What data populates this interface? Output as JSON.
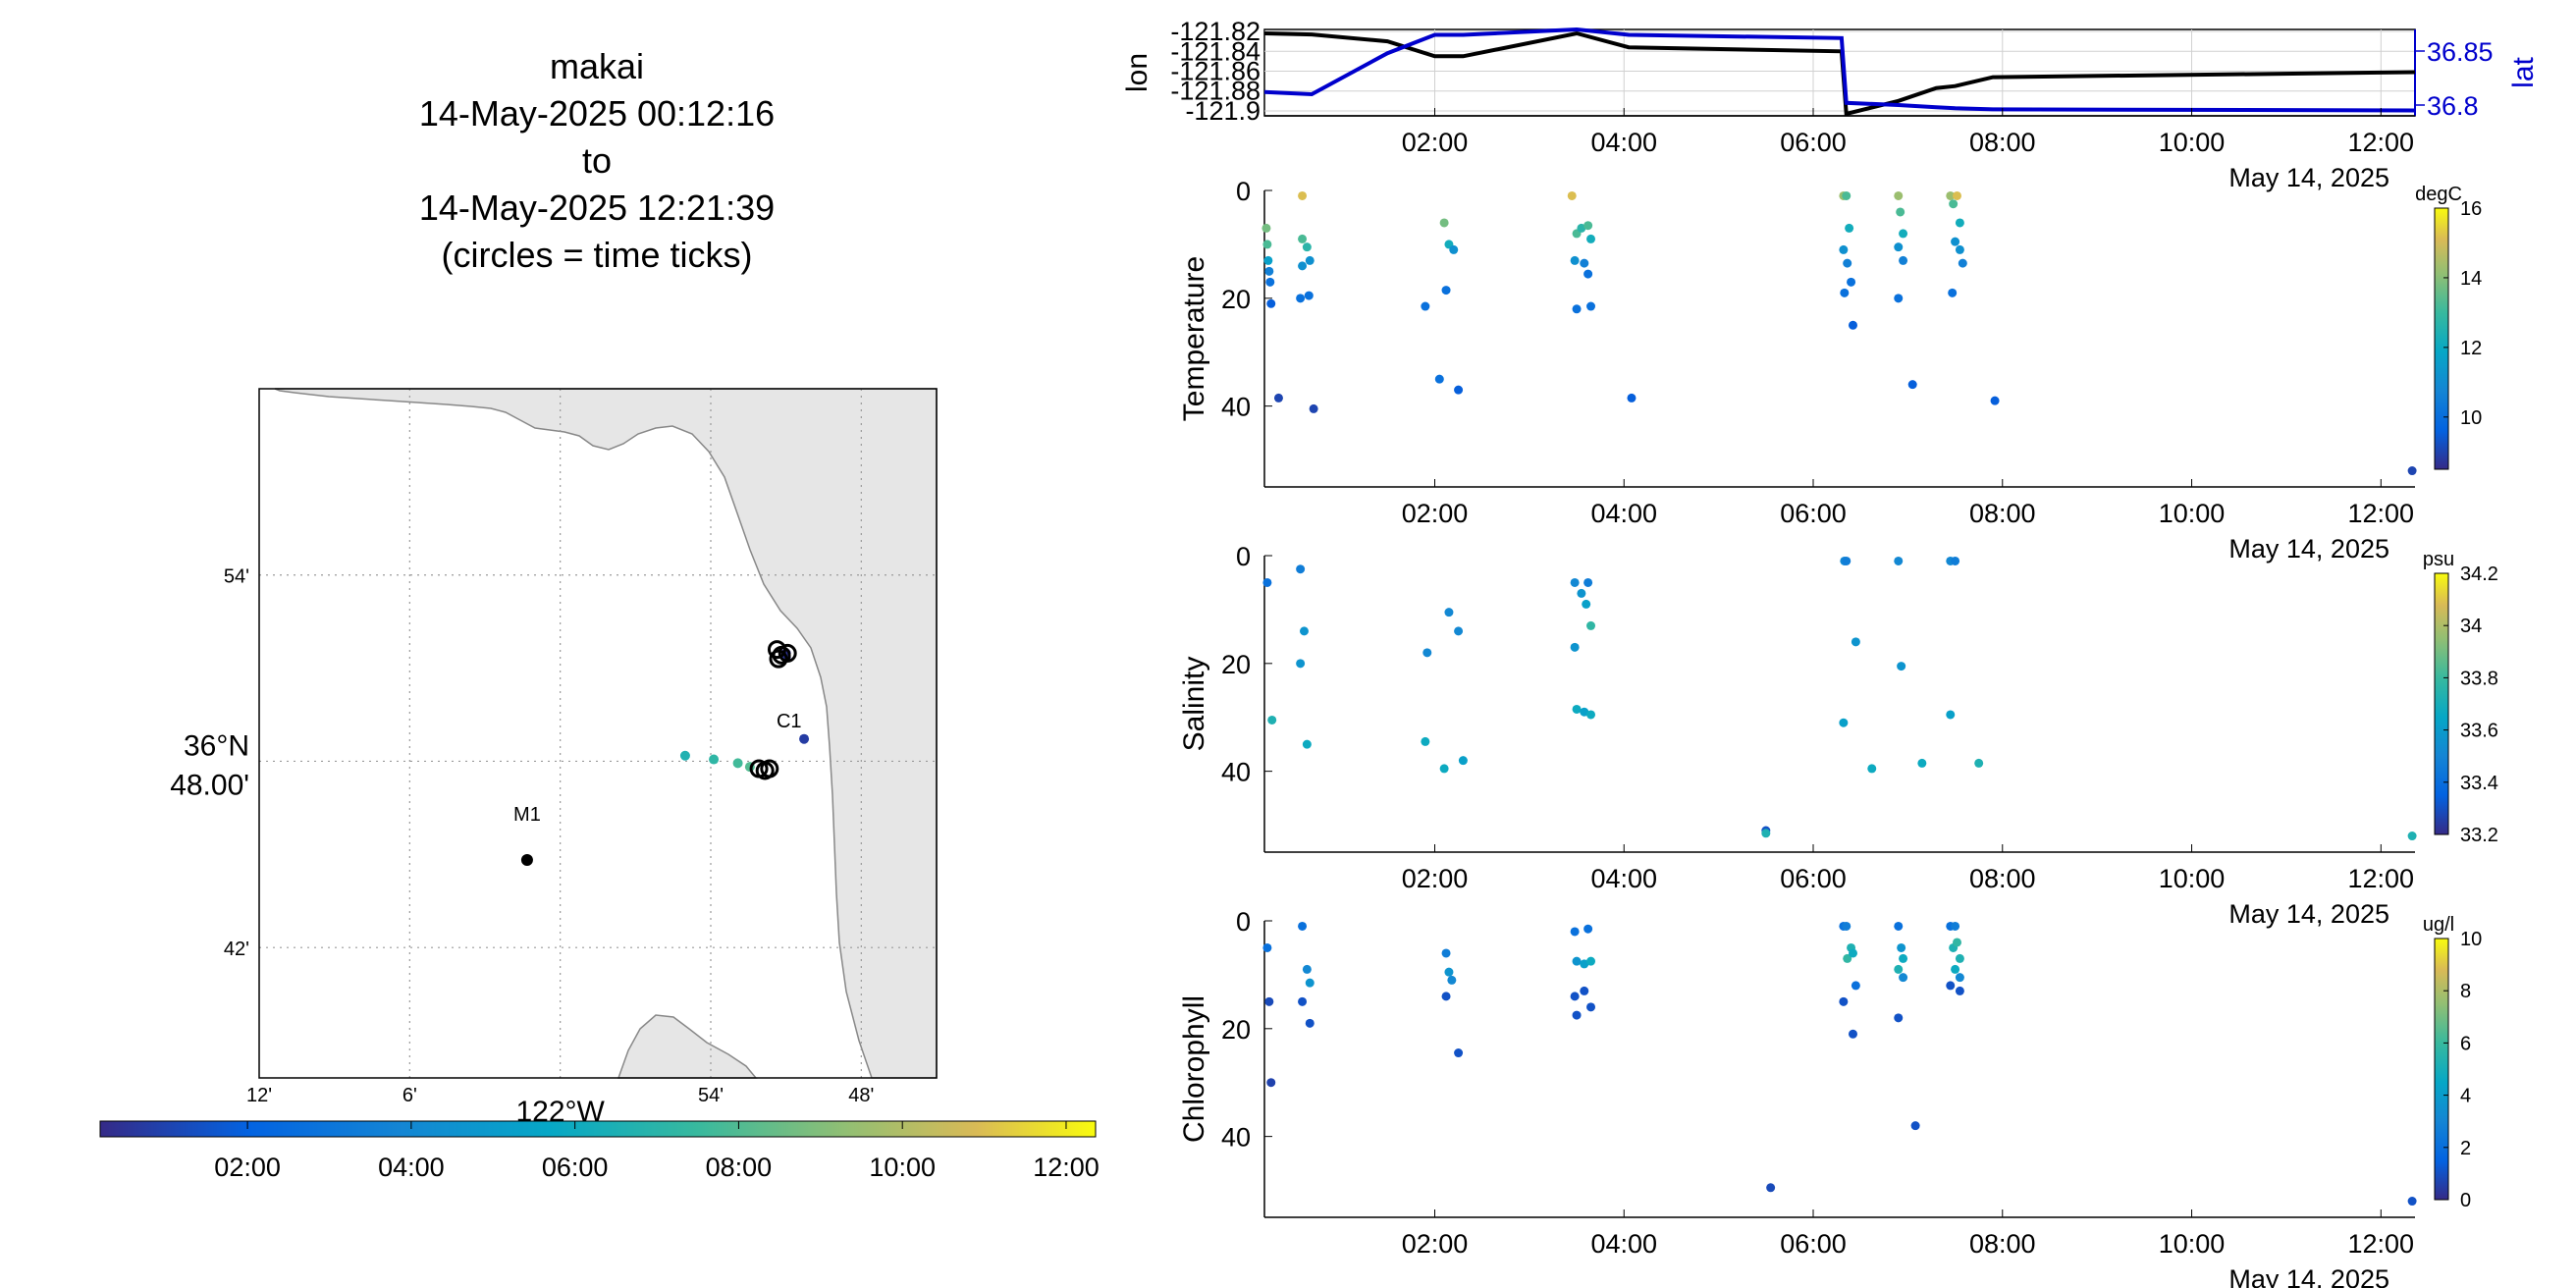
{
  "header": {
    "title_lines": [
      "makai",
      "14-May-2025 00:12:16",
      "to",
      "14-May-2025 12:21:39",
      "(circles = time ticks)"
    ]
  },
  "map": {
    "lat_labels": [
      "54'",
      "36°N 48.00'",
      "42'"
    ],
    "lat_values": [
      36.9,
      36.8,
      36.7
    ],
    "lon_labels": [
      "12'",
      "6'",
      "122°W",
      "54'",
      "48'"
    ],
    "lon_values": [
      -122.2,
      -122.1,
      -122.0,
      -121.9,
      -121.8
    ],
    "lon_axis_label": "122°W",
    "stations": [
      {
        "name": "M1",
        "lat": 36.747,
        "lon": -122.022
      },
      {
        "name": "C1",
        "lat": 36.797,
        "lon": -121.848
      }
    ],
    "track_points": [
      {
        "lat": 36.858,
        "lon": -121.85,
        "time": "00:15"
      },
      {
        "lat": 36.856,
        "lon": -121.85,
        "time": "00:30"
      },
      {
        "lat": 36.812,
        "lon": -121.838,
        "time": "00:45"
      },
      {
        "lat": 36.803,
        "lon": -121.917,
        "time": "06:20"
      },
      {
        "lat": 36.801,
        "lon": -121.898,
        "time": "06:50"
      },
      {
        "lat": 36.799,
        "lon": -121.882,
        "time": "07:20"
      },
      {
        "lat": 36.797,
        "lon": -121.874,
        "time": "07:40"
      }
    ],
    "time_circles": [
      {
        "lat": 36.86,
        "lon": -121.856
      },
      {
        "lat": 36.857,
        "lon": -121.853
      },
      {
        "lat": 36.858,
        "lon": -121.849
      },
      {
        "lat": 36.855,
        "lon": -121.855
      },
      {
        "lat": 36.796,
        "lon": -121.868
      },
      {
        "lat": 36.795,
        "lon": -121.864
      },
      {
        "lat": 36.796,
        "lon": -121.861
      }
    ],
    "colorbar_ticks": [
      "02:00",
      "04:00",
      "06:00",
      "08:00",
      "10:00",
      "12:00"
    ],
    "colorbar_range_hours": [
      0.2,
      12.36
    ],
    "colors": {
      "land": "#e6e6e6",
      "coast": "#888888",
      "grid": "#9a9a9a"
    }
  },
  "chart_data": [
    {
      "type": "line",
      "name": "position",
      "ylabel": "lon",
      "ylabel_right": "lat",
      "y_ticks_left": [
        "-121.82",
        "-121.84",
        "-121.86",
        "-121.88",
        "-121.9"
      ],
      "y_ticks_right": [
        "36.85",
        "36.8"
      ],
      "ylim_left": [
        -121.905,
        -121.818
      ],
      "ylim_right": [
        36.79,
        36.87
      ],
      "x_ticks": [
        "02:00",
        "04:00",
        "06:00",
        "08:00",
        "10:00",
        "12:00"
      ],
      "xlim_hours": [
        0.2,
        12.36
      ],
      "date_label": "May 14, 2025",
      "series": [
        {
          "axis": "left",
          "color": "#000000",
          "x": [
            0.2,
            0.7,
            1.5,
            2.0,
            2.3,
            3.5,
            4.05,
            6.3,
            6.35,
            6.9,
            7.3,
            7.5,
            7.9,
            12.36
          ],
          "y": [
            -121.822,
            -121.823,
            -121.83,
            -121.845,
            -121.845,
            -121.822,
            -121.836,
            -121.84,
            -121.903,
            -121.89,
            -121.877,
            -121.875,
            -121.866,
            -121.861
          ]
        },
        {
          "axis": "right",
          "color": "#0000cc",
          "x": [
            0.2,
            0.7,
            1.5,
            2.0,
            2.3,
            3.5,
            4.05,
            6.3,
            6.35,
            6.9,
            7.3,
            7.5,
            7.9,
            12.36
          ],
          "y": [
            36.812,
            36.81,
            36.848,
            36.865,
            36.865,
            36.87,
            36.865,
            36.862,
            36.802,
            36.8,
            36.798,
            36.797,
            36.796,
            36.795
          ]
        }
      ]
    },
    {
      "type": "scatter",
      "name": "temperature",
      "ylabel": "Temperature",
      "y_ticks": [
        "0",
        "20",
        "40"
      ],
      "ylim": [
        0,
        55
      ],
      "x_ticks": [
        "02:00",
        "04:00",
        "06:00",
        "08:00",
        "10:00",
        "12:00"
      ],
      "xlim_hours": [
        0.2,
        12.36
      ],
      "date_label": "May 14, 2025",
      "colorbar": {
        "label": "degC",
        "ticks": [
          "16",
          "14",
          "12",
          "10"
        ],
        "range": [
          8.5,
          16
        ]
      },
      "points": [
        [
          0.22,
          7,
          13.5
        ],
        [
          0.23,
          10,
          13
        ],
        [
          0.24,
          13,
          11.5
        ],
        [
          0.25,
          15,
          10.5
        ],
        [
          0.26,
          17,
          10
        ],
        [
          0.27,
          21,
          9.5
        ],
        [
          0.35,
          38.5,
          9
        ],
        [
          0.6,
          1,
          15
        ],
        [
          0.6,
          9,
          13
        ],
        [
          0.65,
          10.5,
          12.5
        ],
        [
          0.6,
          14,
          11
        ],
        [
          0.68,
          13,
          11
        ],
        [
          0.58,
          20,
          10
        ],
        [
          0.67,
          19.5,
          10
        ],
        [
          0.72,
          40.5,
          9
        ],
        [
          1.9,
          21.5,
          10
        ],
        [
          2.05,
          35,
          10
        ],
        [
          2.1,
          6,
          13.5
        ],
        [
          2.15,
          10,
          12
        ],
        [
          2.2,
          11,
          11
        ],
        [
          2.12,
          18.5,
          10
        ],
        [
          2.25,
          37,
          9.5
        ],
        [
          3.45,
          1,
          15
        ],
        [
          3.5,
          8,
          13
        ],
        [
          3.55,
          7,
          12.5
        ],
        [
          3.62,
          6.5,
          13
        ],
        [
          3.65,
          9,
          12
        ],
        [
          3.48,
          13,
          11
        ],
        [
          3.58,
          13.5,
          10.5
        ],
        [
          3.62,
          15.5,
          10
        ],
        [
          3.5,
          22,
          10
        ],
        [
          3.65,
          21.5,
          10
        ],
        [
          4.08,
          38.5,
          9.5
        ],
        [
          6.32,
          1,
          14
        ],
        [
          6.35,
          1,
          13
        ],
        [
          6.38,
          7,
          12
        ],
        [
          6.32,
          11,
          11
        ],
        [
          6.36,
          13.5,
          10.5
        ],
        [
          6.4,
          17,
          10
        ],
        [
          6.33,
          19,
          10
        ],
        [
          6.42,
          25,
          9.5
        ],
        [
          6.9,
          1,
          14
        ],
        [
          6.92,
          4,
          13
        ],
        [
          6.95,
          8,
          12
        ],
        [
          6.9,
          10.5,
          11
        ],
        [
          6.95,
          13,
          10.5
        ],
        [
          6.9,
          20,
          10
        ],
        [
          7.05,
          36,
          9.5
        ],
        [
          7.45,
          1,
          14
        ],
        [
          7.52,
          1,
          15
        ],
        [
          7.48,
          2.5,
          13
        ],
        [
          7.55,
          6,
          12
        ],
        [
          7.5,
          9.5,
          11
        ],
        [
          7.55,
          11,
          11
        ],
        [
          7.58,
          13.5,
          10.5
        ],
        [
          7.47,
          19,
          10
        ],
        [
          7.92,
          39,
          9.5
        ],
        [
          12.33,
          52,
          9
        ]
      ]
    },
    {
      "type": "scatter",
      "name": "salinity",
      "ylabel": "Salinity",
      "y_ticks": [
        "0",
        "20",
        "40"
      ],
      "ylim": [
        0,
        55
      ],
      "x_ticks": [
        "02:00",
        "04:00",
        "06:00",
        "08:00",
        "10:00",
        "12:00"
      ],
      "xlim_hours": [
        0.2,
        12.36
      ],
      "date_label": "May 14, 2025",
      "colorbar": {
        "label": "psu",
        "ticks": [
          "34.2",
          "34",
          "33.8",
          "33.6",
          "33.4",
          "33.2"
        ],
        "range": [
          33.2,
          34.2
        ]
      },
      "points": [
        [
          0.23,
          5,
          33.4
        ],
        [
          0.28,
          30.5,
          33.7
        ],
        [
          0.58,
          2.5,
          33.45
        ],
        [
          0.62,
          14,
          33.55
        ],
        [
          0.58,
          20,
          33.55
        ],
        [
          0.65,
          35,
          33.65
        ],
        [
          1.92,
          18,
          33.5
        ],
        [
          1.9,
          34.5,
          33.65
        ],
        [
          2.1,
          39.5,
          33.65
        ],
        [
          2.15,
          10.5,
          33.5
        ],
        [
          2.25,
          14,
          33.5
        ],
        [
          2.3,
          38,
          33.6
        ],
        [
          3.48,
          5,
          33.5
        ],
        [
          3.62,
          5,
          33.45
        ],
        [
          3.55,
          7,
          33.55
        ],
        [
          3.6,
          9,
          33.6
        ],
        [
          3.65,
          13,
          33.75
        ],
        [
          3.48,
          17,
          33.55
        ],
        [
          3.5,
          28.5,
          33.65
        ],
        [
          3.58,
          29,
          33.6
        ],
        [
          3.65,
          29.5,
          33.65
        ],
        [
          5.5,
          51,
          33.3
        ],
        [
          5.5,
          51.5,
          33.7
        ],
        [
          6.33,
          1,
          33.5
        ],
        [
          6.35,
          1,
          33.45
        ],
        [
          6.45,
          16,
          33.55
        ],
        [
          6.32,
          31,
          33.6
        ],
        [
          6.62,
          39.5,
          33.65
        ],
        [
          6.9,
          1,
          33.5
        ],
        [
          6.93,
          20.5,
          33.55
        ],
        [
          7.15,
          38.5,
          33.65
        ],
        [
          7.45,
          1,
          33.5
        ],
        [
          7.5,
          1,
          33.45
        ],
        [
          7.45,
          29.5,
          33.6
        ],
        [
          7.75,
          38.5,
          33.7
        ],
        [
          12.33,
          52,
          33.7
        ]
      ]
    },
    {
      "type": "scatter",
      "name": "chlorophyll",
      "ylabel": "Chlorophyll",
      "y_ticks": [
        "0",
        "20",
        "40"
      ],
      "ylim": [
        0,
        55
      ],
      "x_ticks": [
        "02:00",
        "04:00",
        "06:00",
        "08:00",
        "10:00",
        "12:00"
      ],
      "xlim_hours": [
        0.2,
        12.36
      ],
      "date_label": "May 14, 2025",
      "colorbar": {
        "label": "ug/l",
        "ticks": [
          "10",
          "8",
          "6",
          "4",
          "2",
          "0"
        ],
        "range": [
          0,
          10
        ]
      },
      "points": [
        [
          0.23,
          5,
          2
        ],
        [
          0.25,
          15,
          0.8
        ],
        [
          0.27,
          30,
          0.6
        ],
        [
          0.6,
          1,
          2
        ],
        [
          0.65,
          9,
          3
        ],
        [
          0.68,
          11.5,
          3.5
        ],
        [
          0.6,
          15,
          1
        ],
        [
          0.68,
          19,
          1
        ],
        [
          2.12,
          6,
          2.5
        ],
        [
          2.15,
          9.5,
          3.5
        ],
        [
          2.18,
          11,
          3
        ],
        [
          2.12,
          14,
          1
        ],
        [
          2.25,
          24.5,
          1
        ],
        [
          3.48,
          2,
          2
        ],
        [
          3.62,
          1.5,
          2
        ],
        [
          3.5,
          7.5,
          3.5
        ],
        [
          3.58,
          8,
          4
        ],
        [
          3.65,
          7.5,
          4.5
        ],
        [
          3.48,
          14,
          1
        ],
        [
          3.58,
          13,
          1
        ],
        [
          3.65,
          16,
          1
        ],
        [
          3.5,
          17.5,
          1
        ],
        [
          5.55,
          49.5,
          0.8
        ],
        [
          6.32,
          1,
          2
        ],
        [
          6.35,
          1,
          2.5
        ],
        [
          6.4,
          5,
          5
        ],
        [
          6.36,
          7,
          5.5
        ],
        [
          6.42,
          6,
          4.5
        ],
        [
          6.45,
          12,
          2
        ],
        [
          6.32,
          15,
          1
        ],
        [
          6.42,
          21,
          1
        ],
        [
          6.9,
          1,
          2
        ],
        [
          6.93,
          5,
          3.5
        ],
        [
          6.95,
          7,
          4.5
        ],
        [
          6.9,
          9,
          5
        ],
        [
          6.95,
          10.5,
          3
        ],
        [
          6.9,
          18,
          1
        ],
        [
          7.08,
          38,
          1
        ],
        [
          7.45,
          1,
          2
        ],
        [
          7.5,
          1,
          2.5
        ],
        [
          7.48,
          5,
          5
        ],
        [
          7.52,
          4,
          5.5
        ],
        [
          7.55,
          7,
          5
        ],
        [
          7.5,
          9,
          4.5
        ],
        [
          7.55,
          10.5,
          3
        ],
        [
          7.45,
          12,
          1
        ],
        [
          7.55,
          13,
          1
        ],
        [
          12.33,
          52,
          1
        ]
      ]
    }
  ]
}
